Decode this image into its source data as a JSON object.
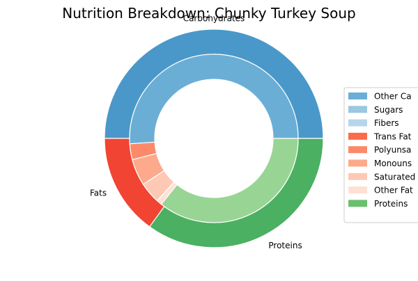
{
  "chart_data": {
    "type": "pie",
    "subtype": "nested-donut",
    "title": "Nutrition Breakdown:  Chunky Turkey Soup",
    "outer_ring": {
      "labels": [
        "Carbohydrates",
        "Fats",
        "Proteins"
      ],
      "values": [
        50,
        15,
        35
      ],
      "colors": [
        "#4a98c9",
        "#f14432",
        "#4bb062"
      ]
    },
    "inner_ring": {
      "labels": [
        "Other Carbs",
        "Sugars",
        "Fibers",
        "Trans Fats",
        "Polyunsaturated Fats",
        "Monounsaturated Fats",
        "Saturated Fats",
        "Other Fats",
        "Proteins"
      ],
      "values": [
        50,
        0,
        0,
        0,
        3,
        5,
        4,
        1,
        35
      ],
      "colors": [
        "#6aaed6",
        "#9ac8e0",
        "#b7d4ea",
        "#fb6a4a",
        "#fc8a6a",
        "#fcaa8b",
        "#fdc9b4",
        "#fee1d4",
        "#98d594"
      ]
    },
    "legend": {
      "position": "right",
      "entries": [
        "Other Ca",
        "Sugars",
        "Fibers",
        "Trans Fat",
        "Polyunsa",
        "Monouns",
        "Saturated",
        "Other Fat",
        "Proteins"
      ],
      "colors": [
        "#6aaed6",
        "#9ac8e0",
        "#b7d4ea",
        "#fb6a4a",
        "#fc8a6a",
        "#fcaa8b",
        "#fdc9b4",
        "#fee1d4",
        "#6bbf6f"
      ]
    }
  }
}
